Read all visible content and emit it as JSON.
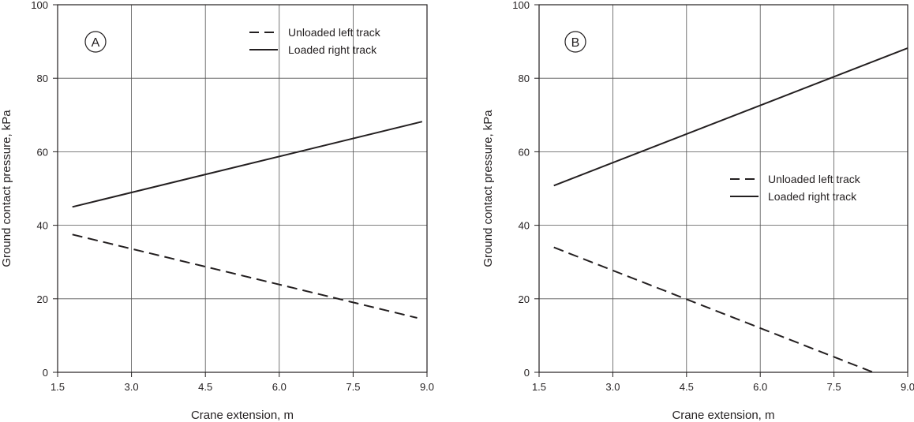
{
  "chart_data": [
    {
      "type": "line",
      "panel_label": "A",
      "xlabel": "Crane extension, m",
      "ylabel": "Ground contact pressure, kPa",
      "xlim": [
        1.5,
        9.0
      ],
      "ylim": [
        0,
        100
      ],
      "xticks": [
        "1.5",
        "3.0",
        "4.5",
        "6.0",
        "7.5",
        "9.0"
      ],
      "yticks": [
        "0",
        "20",
        "40",
        "60",
        "80",
        "100"
      ],
      "grid": true,
      "legend_position": "top-right",
      "series": [
        {
          "name": "Unloaded left track",
          "style": "dashed",
          "color": "#231f20",
          "x": [
            1.8,
            8.8
          ],
          "y": [
            37.5,
            14.8
          ]
        },
        {
          "name": "Loaded right track",
          "style": "solid",
          "color": "#231f20",
          "x": [
            1.8,
            8.9
          ],
          "y": [
            45.0,
            68.2
          ]
        }
      ]
    },
    {
      "type": "line",
      "panel_label": "B",
      "xlabel": "Crane extension, m",
      "ylabel": "Ground contact pressure, kPa",
      "xlim": [
        1.5,
        9.0
      ],
      "ylim": [
        0,
        100
      ],
      "xticks": [
        "1.5",
        "3.0",
        "4.5",
        "6.0",
        "7.5",
        "9.0"
      ],
      "yticks": [
        "0",
        "20",
        "40",
        "60",
        "80",
        "100"
      ],
      "grid": true,
      "legend_position": "center-right",
      "series": [
        {
          "name": "Unloaded left track",
          "style": "dashed",
          "color": "#231f20",
          "x": [
            1.8,
            8.3
          ],
          "y": [
            34.0,
            0.0
          ]
        },
        {
          "name": "Loaded right track",
          "style": "solid",
          "color": "#231f20",
          "x": [
            1.8,
            9.0
          ],
          "y": [
            50.8,
            88.2
          ]
        }
      ]
    }
  ]
}
